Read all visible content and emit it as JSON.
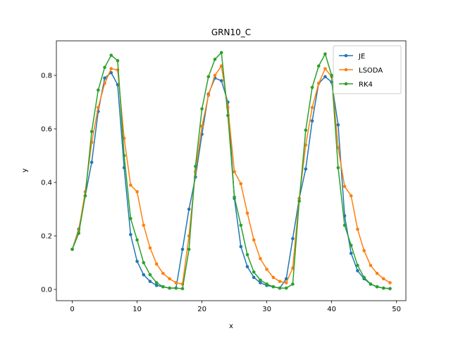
{
  "chart_data": {
    "type": "line",
    "title": "GRN10_C",
    "x_label": "x",
    "y_label": "y",
    "x": [
      0,
      1,
      2,
      3,
      4,
      5,
      6,
      7,
      8,
      9,
      10,
      11,
      12,
      13,
      14,
      15,
      16,
      17,
      18,
      19,
      20,
      21,
      22,
      23,
      24,
      25,
      26,
      27,
      28,
      29,
      30,
      31,
      32,
      33,
      34,
      35,
      36,
      37,
      38,
      39,
      40,
      41,
      42,
      43,
      44,
      45,
      46,
      47,
      48,
      49
    ],
    "series": [
      {
        "name": "JE",
        "color": "#1f77b4",
        "values": [
          0.15,
          0.225,
          0.35,
          0.475,
          0.665,
          0.79,
          0.81,
          0.765,
          0.455,
          0.205,
          0.105,
          0.055,
          0.03,
          0.015,
          0.01,
          0.005,
          0.005,
          0.15,
          0.3,
          0.42,
          0.58,
          0.73,
          0.79,
          0.78,
          0.7,
          0.34,
          0.16,
          0.085,
          0.045,
          0.025,
          0.015,
          0.01,
          0.005,
          0.04,
          0.19,
          0.34,
          0.45,
          0.63,
          0.77,
          0.795,
          0.775,
          0.615,
          0.275,
          0.135,
          0.07,
          0.04,
          0.02,
          0.01,
          0.005,
          0.003
        ]
      },
      {
        "name": "LSODA",
        "color": "#ff7f0e",
        "values": [
          0.15,
          0.22,
          0.365,
          0.55,
          0.68,
          0.77,
          0.825,
          0.82,
          0.565,
          0.39,
          0.365,
          0.24,
          0.155,
          0.095,
          0.06,
          0.04,
          0.025,
          0.02,
          0.2,
          0.44,
          0.61,
          0.725,
          0.8,
          0.835,
          0.68,
          0.44,
          0.395,
          0.285,
          0.185,
          0.115,
          0.075,
          0.045,
          0.03,
          0.025,
          0.08,
          0.34,
          0.54,
          0.68,
          0.77,
          0.825,
          0.795,
          0.53,
          0.385,
          0.35,
          0.225,
          0.145,
          0.09,
          0.06,
          0.04,
          0.025
        ]
      },
      {
        "name": "RK4",
        "color": "#2ca02c",
        "values": [
          0.15,
          0.21,
          0.35,
          0.59,
          0.745,
          0.83,
          0.875,
          0.855,
          0.5,
          0.265,
          0.185,
          0.1,
          0.055,
          0.025,
          0.01,
          0.005,
          0.005,
          0.003,
          0.15,
          0.46,
          0.675,
          0.795,
          0.86,
          0.885,
          0.65,
          0.345,
          0.24,
          0.13,
          0.065,
          0.035,
          0.02,
          0.01,
          0.005,
          0.005,
          0.02,
          0.33,
          0.595,
          0.755,
          0.835,
          0.88,
          0.8,
          0.455,
          0.24,
          0.165,
          0.09,
          0.045,
          0.02,
          0.01,
          0.005,
          0.003
        ]
      }
    ],
    "xlim": [
      -2.45,
      51.45
    ],
    "xticks": [
      0,
      10,
      20,
      30,
      40,
      50
    ],
    "ylim": [
      -0.042,
      0.929
    ],
    "yticks": [
      {
        "value": 0,
        "label": "0.0"
      },
      {
        "value": 0.2,
        "label": "0.2"
      },
      {
        "value": 0.4,
        "label": "0.4"
      },
      {
        "value": 0.6,
        "label": "0.6"
      },
      {
        "value": 0.8,
        "label": "0.8"
      }
    ],
    "legend": "upper right"
  }
}
